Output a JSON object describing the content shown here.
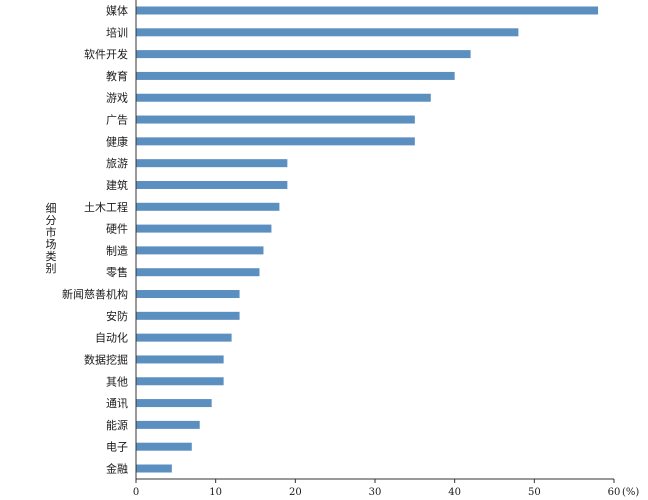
{
  "chart_data": {
    "type": "bar",
    "orientation": "horizontal",
    "title": "",
    "ylabel": "细分市场类别",
    "xlabel": "(%)",
    "xlim": [
      0,
      60
    ],
    "x_ticks": [
      0,
      10,
      20,
      30,
      40,
      50,
      60
    ],
    "grid": false,
    "legend": "none",
    "bar_color": "#5b8fc0",
    "categories": [
      "媒体",
      "培训",
      "软件开发",
      "教育",
      "游戏",
      "广告",
      "健康",
      "旅游",
      "建筑",
      "土木工程",
      "硬件",
      "制造",
      "零售",
      "新闻慈善机构",
      "安防",
      "自动化",
      "数据挖掘",
      "其他",
      "通讯",
      "能源",
      "电子",
      "金融"
    ],
    "values": [
      58,
      48,
      42,
      40,
      37,
      35,
      35,
      19,
      19,
      18,
      17,
      16,
      15.5,
      13,
      13,
      12,
      11,
      11,
      9.5,
      8,
      7,
      4.5
    ]
  }
}
